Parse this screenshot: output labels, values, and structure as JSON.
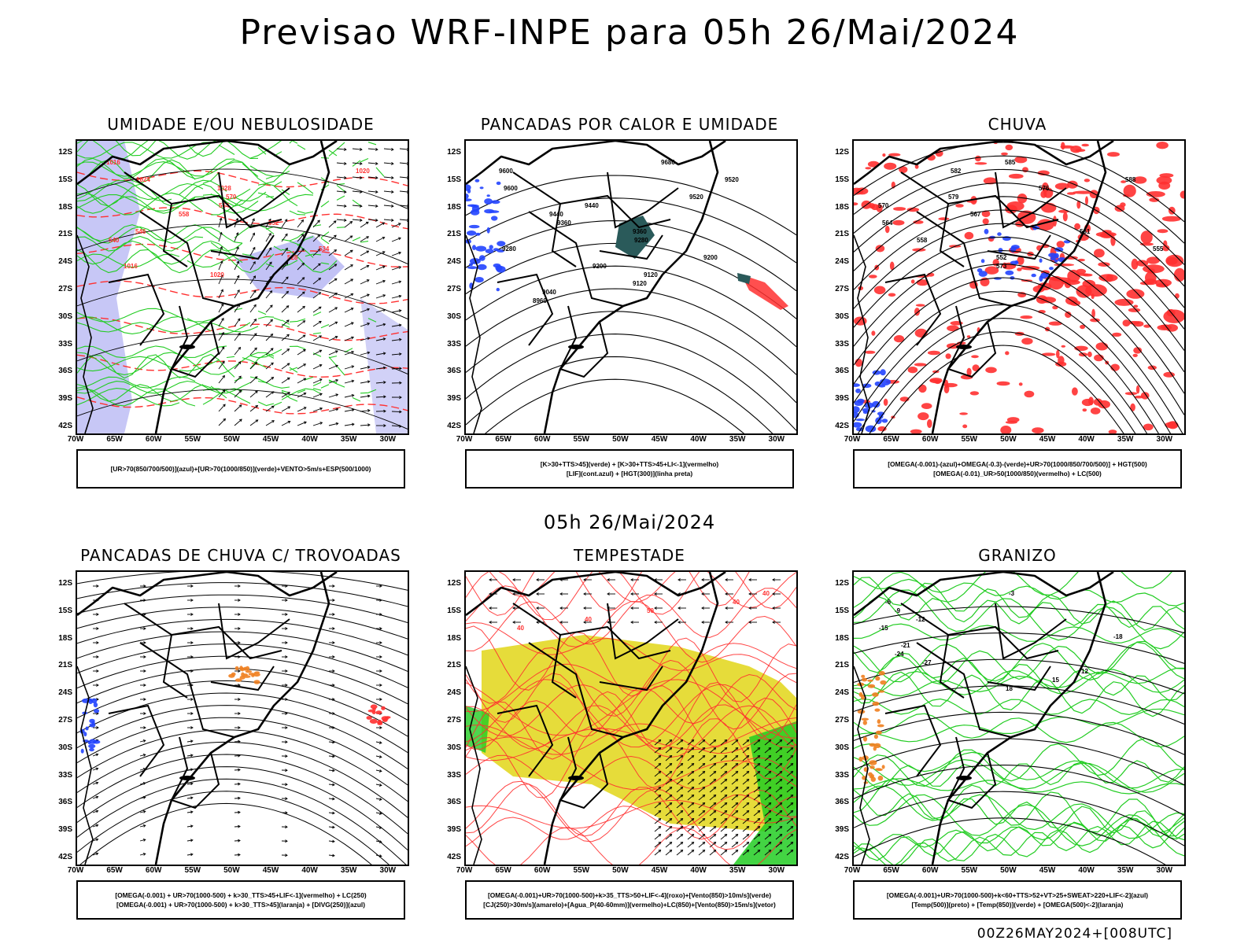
{
  "title": "Previsao WRF-INPE  para 05h 26/Mai/2024",
  "mid_title": "05h 26/Mai/2024",
  "footer": "00Z26MAY2024+[008UTC]",
  "lat_labels": [
    "12S",
    "15S",
    "18S",
    "21S",
    "24S",
    "27S",
    "30S",
    "33S",
    "36S",
    "39S",
    "42S"
  ],
  "lon_labels": [
    "70W",
    "65W",
    "60W",
    "55W",
    "50W",
    "45W",
    "40W",
    "35W",
    "30W"
  ],
  "colors": {
    "red": "#ff3030",
    "green": "#22cc22",
    "blue": "#2244ff",
    "lilac": "#9999ee",
    "yellow": "#e6dc3a",
    "orange": "#f08020",
    "teal": "#2a5a5a"
  },
  "panels": [
    {
      "title": "UMIDADE E/OU NEBULOSIDADE",
      "legend": [
        "[UR>70(850/700/500)](azul)+[UR>70(1000/850)](verde)+VENTO>5m/s+ESP(500/1000)"
      ],
      "contour_labels": [
        "1016",
        "1020",
        "1024",
        "1028",
        "570",
        "564",
        "558",
        "552",
        "546",
        "540",
        "534",
        "528",
        "1016",
        "1020"
      ]
    },
    {
      "title": "PANCADAS POR CALOR E UMIDADE",
      "legend": [
        "[K>30+TTS>45](verde) + [K>30+TTS>45+LI<-1](vermelho)",
        "[LIF](cont.azul) + [HGT(300)](linha preta)"
      ],
      "contour_labels": [
        "9680",
        "9600",
        "9520",
        "9600",
        "9520",
        "9440",
        "9440",
        "9360",
        "9360",
        "9280",
        "9280",
        "9200",
        "9200",
        "9120",
        "9120",
        "9040",
        "8960"
      ]
    },
    {
      "title": "CHUVA",
      "legend": [
        "[OMEGA(-0.001)-(azul)+OMEGA(-0.3)-(verde)+UR>70(1000/850/700/500)] + HGT(500)",
        "[OMEGA(-0.01)_UR>50(1000/850)(vermelho) + LC(500)"
      ],
      "contour_labels": [
        "585",
        "582",
        "588",
        "576",
        "579",
        "570",
        "567",
        "564",
        "561",
        "558",
        "555",
        "552",
        "573"
      ]
    },
    {
      "title": "PANCADAS DE CHUVA C/ TROVOADAS",
      "legend": [
        "[OMEGA(-0.001) + UR>70(1000-500) + k>30_TTS>45+LIF<-1](vermelho) + LC(250)",
        "[OMEGA(-0.001) + UR>70(1000-500) + k>30_TTS>45](laranja) + [DIVG(250)](azul)"
      ],
      "contour_labels": []
    },
    {
      "title": "TEMPESTADE",
      "legend": [
        "[OMEGA(-0.001)+UR>70(1000-500)+k>35_TTS>50+LIF<-4](roxo)+[Vento(850)>10m/s](verde)",
        "[CJ(250)>30m/s](amarelo)+[Agua_P(40-60mm)](vermelho)+LC(850)+[Vento(850)>15m/s](vetor)"
      ],
      "contour_labels": [
        "40",
        "40",
        "50",
        "40",
        "40"
      ]
    },
    {
      "title": "GRANIZO",
      "legend": [
        "[OMEGA(-0.001)+UR>70(1000-500)+k<60+TTS>52+VT>25+SWEAT>220+LIF<-2](azul)",
        "[Temp(500)](preto) + [Temp(850)](verde) + [OMEGA(500)<-2](laranja)"
      ],
      "contour_labels": [
        "-3",
        "-6",
        "-9",
        "-12",
        "-15",
        "-18",
        "-21",
        "-24",
        "-27",
        "12",
        "15",
        "18"
      ]
    }
  ]
}
